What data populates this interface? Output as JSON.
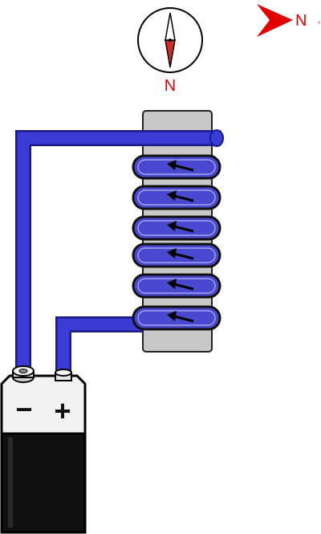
{
  "compass": {
    "label": "N",
    "label_color": "#e00000"
  },
  "north_indicator": {
    "label": "N",
    "color": "#e00000"
  },
  "battery": {
    "negative_label": "−",
    "positive_label": "+"
  },
  "coil": {
    "turns": 6,
    "current_arrow_direction": "left"
  },
  "colors": {
    "wire": "#3b3bd6",
    "wire_dark": "#1a1a8a",
    "core": "#c8c8c8",
    "battery_body": "#111111",
    "battery_top": "#f2f2f2",
    "compass_north": "#d42a2a",
    "compass_south": "#ffffff",
    "accent_red": "#e00000"
  }
}
